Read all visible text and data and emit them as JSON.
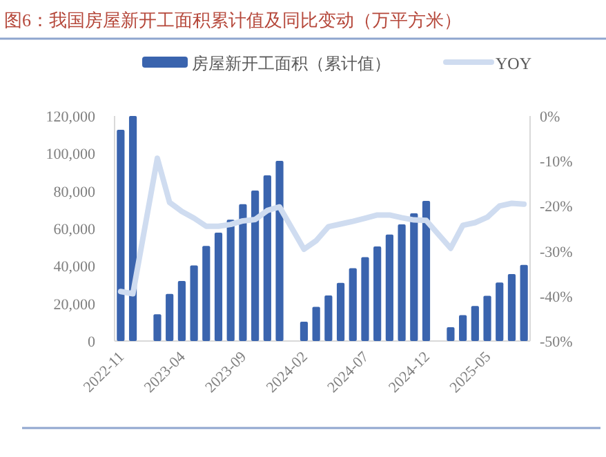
{
  "chart_data": {
    "type": "bar",
    "title": "图6：我国房屋新开工面积累计值及同比变动（万平方米）",
    "categories": [
      "2022-11",
      null,
      null,
      null,
      null,
      "2023-04",
      null,
      null,
      null,
      null,
      "2023-09",
      null,
      null,
      null,
      null,
      "2024-02",
      null,
      null,
      null,
      null,
      "2024-07",
      null,
      null,
      null,
      null,
      "2024-12",
      null,
      null,
      null,
      null,
      "2025-05",
      null,
      null,
      null
    ],
    "series": [
      {
        "name": "房屋新开工面积（累计值）",
        "color": "#3a64ae",
        "values": [
          112600,
          120000,
          null,
          14300,
          25100,
          32000,
          40300,
          50700,
          57800,
          64700,
          73000,
          80200,
          88300,
          96100,
          null,
          10300,
          18200,
          24300,
          31000,
          38800,
          44700,
          50400,
          56800,
          62200,
          68100,
          74700,
          null,
          7400,
          13800,
          18700,
          24100,
          31200,
          35700,
          40600
        ]
      },
      {
        "name": "YOY",
        "type": "line",
        "axis": "y2",
        "color": "#cfdcf0",
        "values": [
          -39,
          -39.5,
          null,
          -9.4,
          -19.2,
          -21.2,
          -22.7,
          -24.5,
          -24.5,
          -24.1,
          -23.3,
          -23,
          -21,
          -20.2,
          null,
          -29.6,
          -27.7,
          -24.6,
          -24,
          -23.4,
          -22.7,
          -22,
          -22,
          -22.6,
          -23.1,
          -23.2,
          null,
          -29.4,
          -24.3,
          -23.7,
          -22.5,
          -20,
          -19.4,
          -19.6
        ]
      }
    ],
    "ylim": [
      0,
      120000
    ],
    "yticks": [
      0,
      {
        "value": 20000,
        "label": "20,000"
      },
      {
        "value": 40000,
        "label": "40,000"
      },
      {
        "value": 60000,
        "label": "60,000"
      },
      {
        "value": 80000,
        "label": "80,000"
      },
      {
        "value": 100000,
        "label": "100,000"
      },
      {
        "value": 120000,
        "label": "120,000"
      }
    ],
    "y2lim": [
      -50,
      0
    ],
    "y2ticks": [
      {
        "value": -50,
        "label": "-50%"
      },
      {
        "value": -40,
        "label": "-40%"
      },
      {
        "value": -30,
        "label": "-30%"
      },
      {
        "value": -20,
        "label": "-20%"
      },
      {
        "value": -10,
        "label": "-10%"
      },
      {
        "value": 0,
        "label": "0%"
      }
    ],
    "legend": "top"
  }
}
